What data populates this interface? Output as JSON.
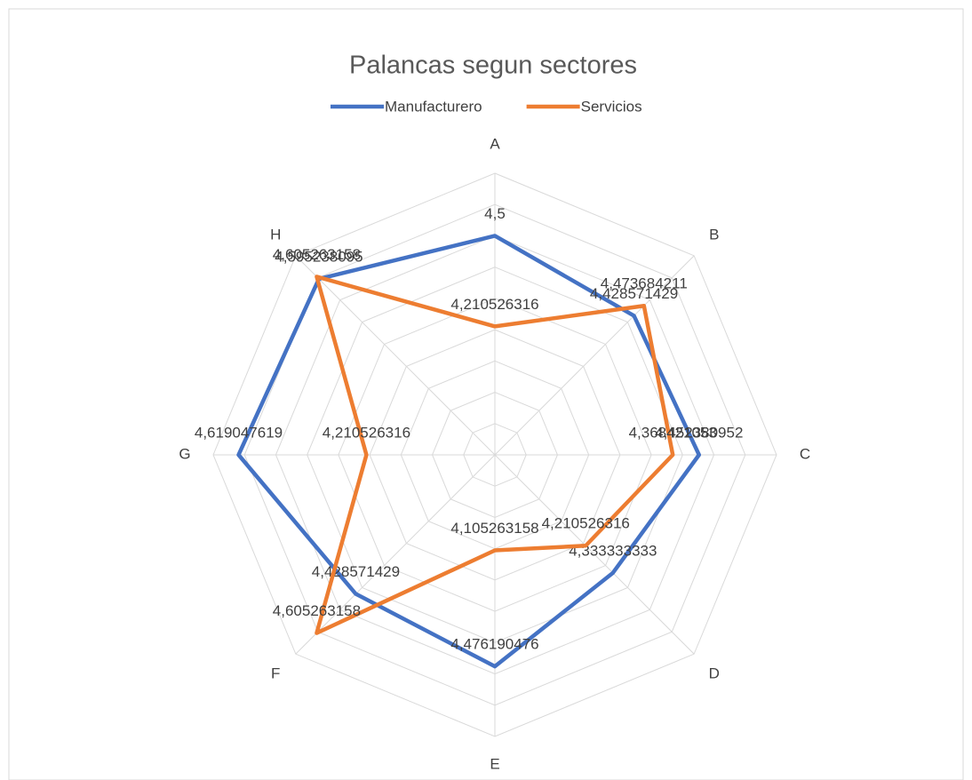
{
  "chart_data": {
    "type": "radar",
    "title": "Palancas segun sectores",
    "categories": [
      "A",
      "B",
      "C",
      "D",
      "E",
      "F",
      "G",
      "H"
    ],
    "series": [
      {
        "name": "Manufacturero",
        "color": "#4472c4",
        "values": [
          4.5,
          4.428571429,
          4.452380952,
          4.333333333,
          4.476190476,
          4.428571429,
          4.619047619,
          4.595238095
        ],
        "value_labels": [
          "4,5",
          "4,428571429",
          "4,452380952",
          "4,333333333",
          "4,476190476",
          "4,428571429",
          "4,619047619",
          "4,595238095"
        ]
      },
      {
        "name": "Servicios",
        "color": "#ed7d31",
        "values": [
          4.210526316,
          4.473684211,
          4.368421053,
          4.210526316,
          4.105263158,
          4.605263158,
          4.210526316,
          4.605263158
        ],
        "value_labels": [
          "4,210526316",
          "4,473684211",
          "4,368421053",
          "4,210526316",
          "4,105263158",
          "4,605263158",
          "4,210526316",
          "4,605263158"
        ]
      }
    ],
    "ylim": [
      3.8,
      4.7
    ],
    "yticks": [
      3.8,
      3.9,
      4.0,
      4.1,
      4.2,
      4.3,
      4.4,
      4.5,
      4.6,
      4.7
    ],
    "grid": true,
    "legend": "top"
  }
}
